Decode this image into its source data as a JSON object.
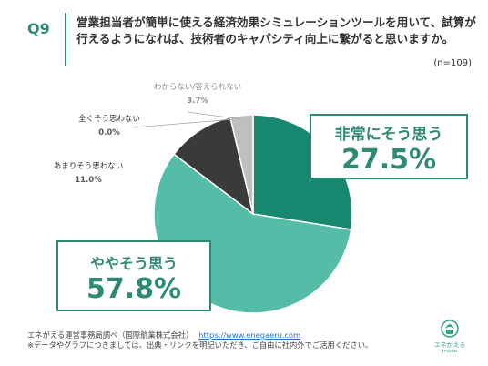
{
  "header": {
    "qnum": "Q9",
    "question": "営業担当者が簡単に使える経済効果シミュレーションツールを用いて、試算が行えるようになれば、技術者のキャパシティ向上に繋がると思いますか。",
    "n": "(n=109)"
  },
  "chart_data": {
    "type": "pie",
    "start_angle_deg": 0,
    "direction": "clockwise",
    "slices": [
      {
        "label": "非常にそう思う",
        "value": 27.5,
        "display": "27.5%",
        "color": "#18876f"
      },
      {
        "label": "ややそう思う",
        "value": 57.8,
        "display": "57.8%",
        "color": "#55bca8"
      },
      {
        "label": "あまりそう思わない",
        "value": 11.0,
        "display": "11.0%",
        "color": "#3a3a3a"
      },
      {
        "label": "全くそう思わない",
        "value": 0.0,
        "display": "0.0%",
        "color": "#999999"
      },
      {
        "label": "わからない/答えられない",
        "value": 3.7,
        "display": "3.7%",
        "color": "#bfbfbf"
      }
    ]
  },
  "footer": {
    "source": "エネがえる運営事務局調べ（国際航業株式会社）",
    "url": "https://www.enegaeru.com",
    "note": "※データやグラフにつきましては、出典・リンクを明記いただき、ご自由に社内外でご活用ください。"
  },
  "logo": {
    "name": "エネがえる",
    "sub": "Inside"
  }
}
